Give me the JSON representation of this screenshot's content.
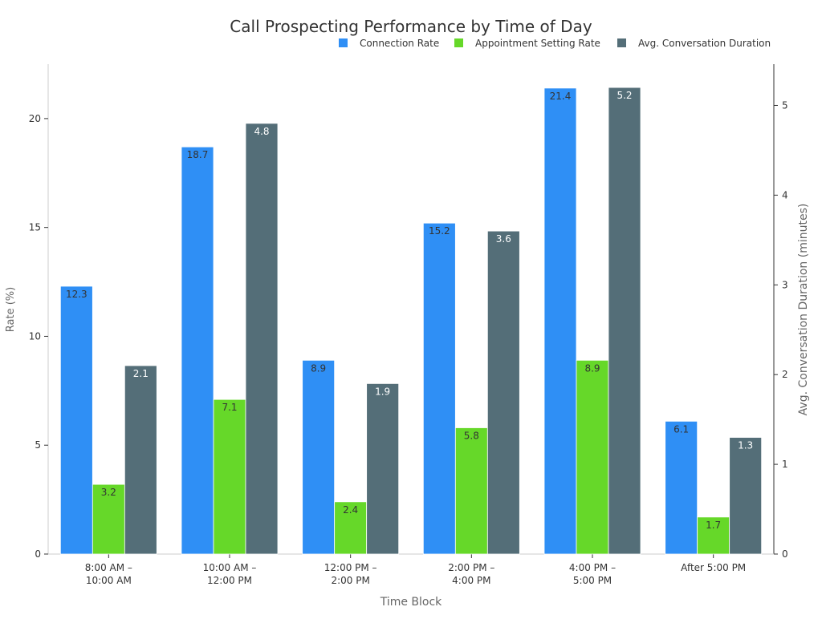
{
  "chart_data": {
    "type": "bar",
    "title": "Call Prospecting Performance by Time of Day",
    "xlabel": "Time Block",
    "ylabel": "Rate (%)",
    "y2label": "Avg. Conversation Duration (minutes)",
    "categories": [
      [
        "8:00 AM –",
        "10:00 AM"
      ],
      [
        "10:00 AM –",
        "12:00 PM"
      ],
      [
        "12:00 PM –",
        "2:00 PM"
      ],
      [
        "2:00 PM –",
        "4:00 PM"
      ],
      [
        "4:00 PM –",
        "5:00 PM"
      ],
      [
        "After 5:00 PM"
      ]
    ],
    "ylim": [
      0,
      22.5
    ],
    "y2lim": [
      0,
      5.46
    ],
    "yticks": [
      0,
      5,
      10,
      15,
      20
    ],
    "y2ticks": [
      0,
      1,
      2,
      3,
      4,
      5
    ],
    "legend_position": "top-right",
    "series": [
      {
        "name": "Connection Rate",
        "axis": "left",
        "color": "#2f8ff5",
        "label_color": "#333333",
        "values": [
          12.3,
          18.7,
          8.9,
          15.2,
          21.4,
          6.1
        ]
      },
      {
        "name": "Appointment Setting Rate",
        "axis": "left",
        "color": "#66d829",
        "label_color": "#333333",
        "values": [
          3.2,
          7.1,
          2.4,
          5.8,
          8.9,
          1.7
        ]
      },
      {
        "name": "Avg. Conversation Duration",
        "axis": "right",
        "color": "#546e78",
        "label_color": "#ffffff",
        "values": [
          2.1,
          4.8,
          1.9,
          3.6,
          5.2,
          1.3
        ]
      }
    ]
  }
}
